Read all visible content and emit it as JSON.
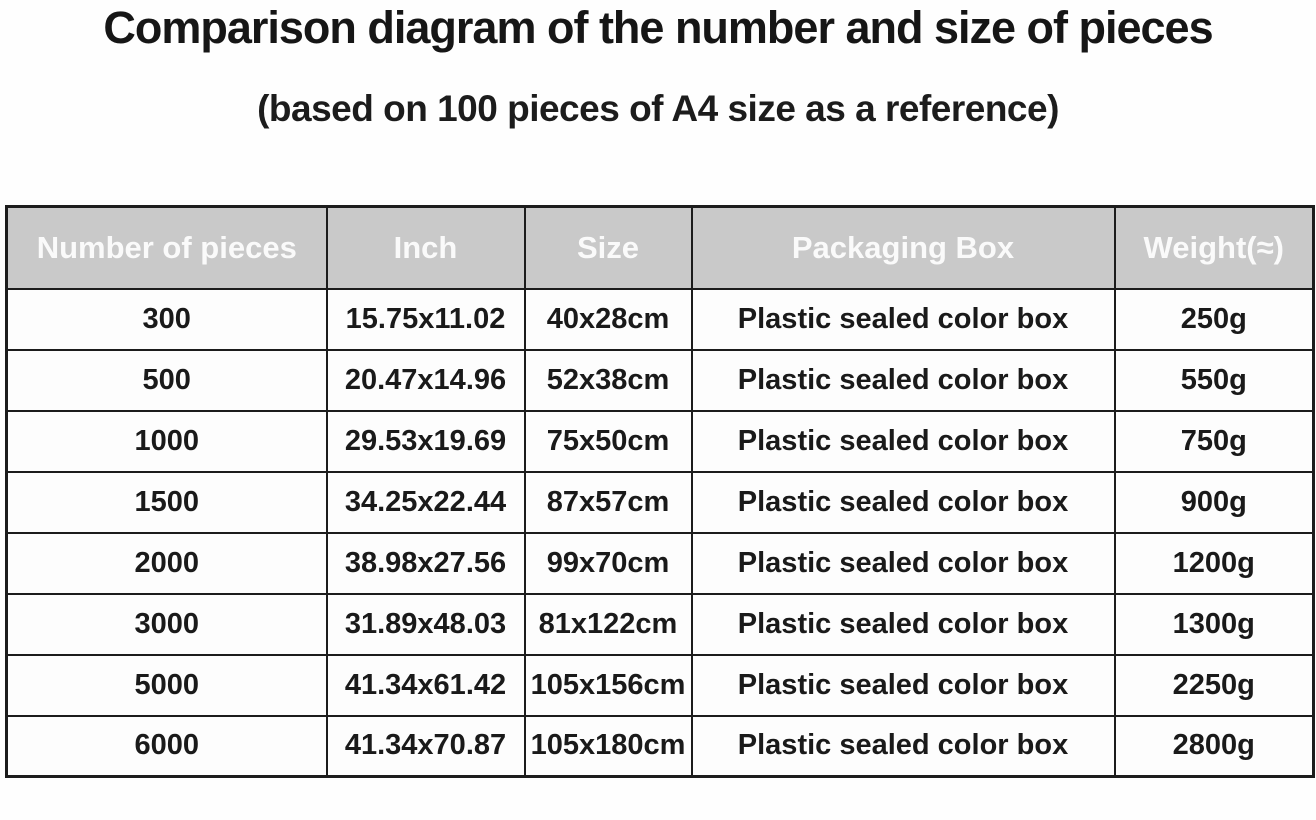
{
  "title": "Comparison diagram of the number and size of pieces",
  "subtitle": "(based on 100 pieces of A4 size as a reference)",
  "colors": {
    "header_bg": "#c9c9c9",
    "header_text": "#fafafa",
    "border": "#1c1c1c",
    "cell_text": "#1a1a1a"
  },
  "chart_data": {
    "type": "table",
    "title": "Comparison diagram of the number and size of pieces",
    "subtitle": "(based on 100 pieces of A4 size as a reference)",
    "columns": [
      "Number of pieces",
      "Inch",
      "Size",
      "Packaging Box",
      "Weight(≈)"
    ],
    "rows": [
      [
        "300",
        "15.75x11.02",
        "40x28cm",
        "Plastic sealed color box",
        "250g"
      ],
      [
        "500",
        "20.47x14.96",
        "52x38cm",
        "Plastic sealed color box",
        "550g"
      ],
      [
        "1000",
        "29.53x19.69",
        "75x50cm",
        "Plastic sealed color box",
        "750g"
      ],
      [
        "1500",
        "34.25x22.44",
        "87x57cm",
        "Plastic sealed color box",
        "900g"
      ],
      [
        "2000",
        "38.98x27.56",
        "99x70cm",
        "Plastic sealed color box",
        "1200g"
      ],
      [
        "3000",
        "31.89x48.03",
        "81x122cm",
        "Plastic sealed color box",
        "1300g"
      ],
      [
        "5000",
        "41.34x61.42",
        "105x156cm",
        "Plastic sealed color box",
        "2250g"
      ],
      [
        "6000",
        "41.34x70.87",
        "105x180cm",
        "Plastic sealed color box",
        "2800g"
      ]
    ]
  }
}
